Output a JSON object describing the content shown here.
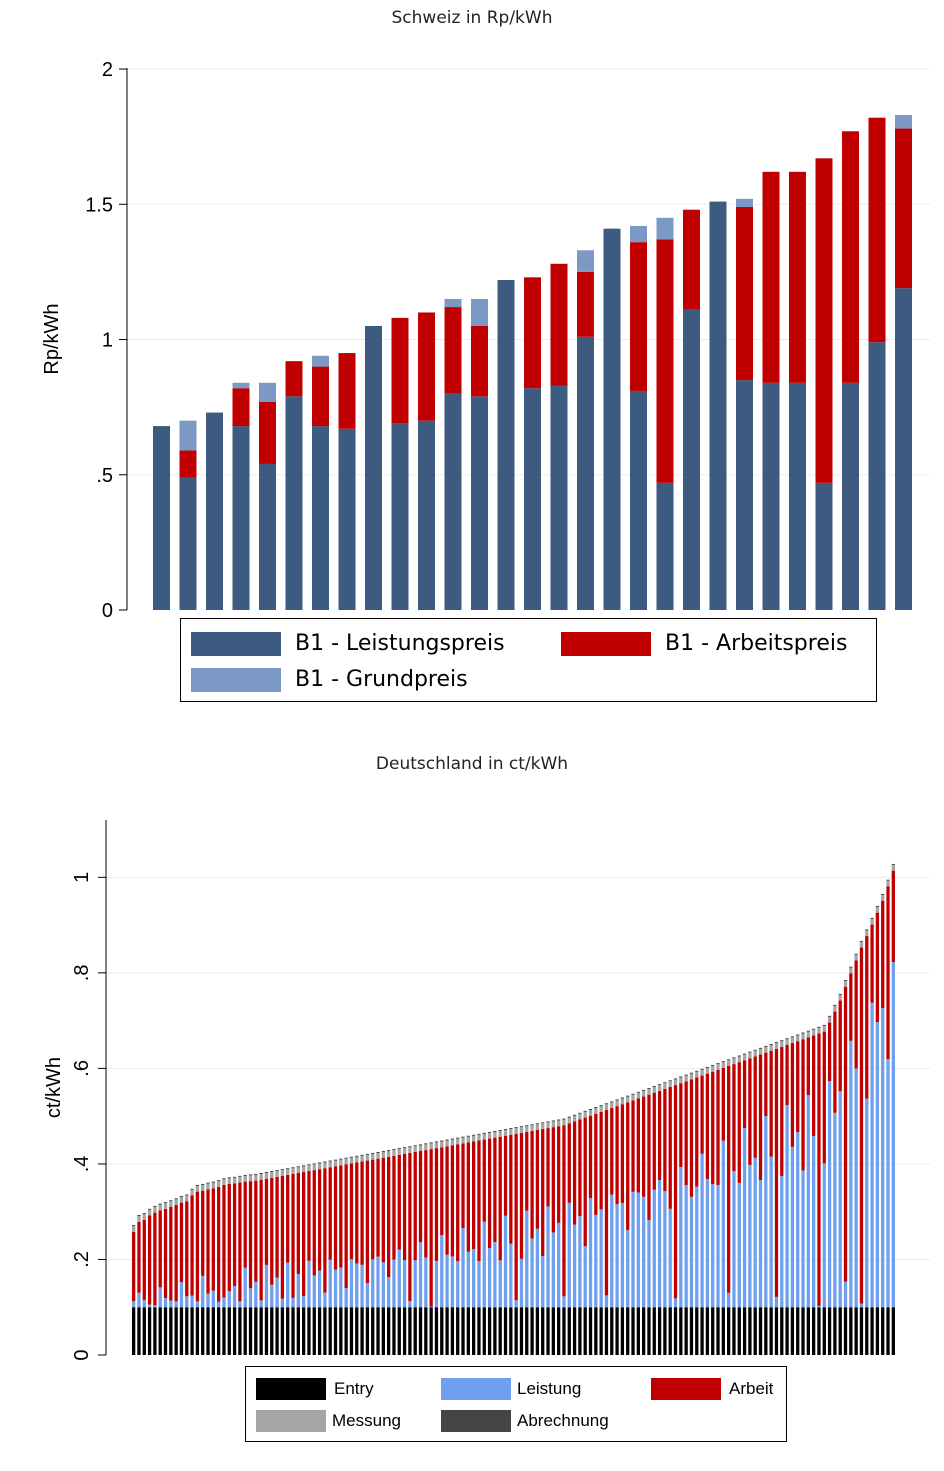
{
  "chart_data": [
    {
      "type": "bar",
      "stacked": true,
      "title": "Schweiz in Rp/kWh",
      "ylabel": "Rp/kWh",
      "xlabel": "",
      "ylim": [
        0,
        2.1
      ],
      "yticks": [
        0,
        0.5,
        1,
        1.5,
        2
      ],
      "ytick_labels": [
        "0",
        ".5",
        "1",
        "1.5",
        "2"
      ],
      "grid": true,
      "legend_position": "bottom",
      "series": [
        {
          "name": "B1 - Leistungspreis",
          "color": "#3d5a80",
          "values": [
            0.68,
            0.49,
            0.73,
            0.68,
            0.54,
            0.79,
            0.68,
            0.67,
            1.05,
            0.69,
            0.7,
            0.8,
            0.79,
            1.22,
            0.82,
            0.83,
            1.01,
            1.41,
            0.81,
            0.47,
            1.11,
            1.51,
            0.85,
            0.84,
            0.84,
            0.47,
            0.84,
            0.99,
            1.19
          ]
        },
        {
          "name": "B1 - Arbeitspreis",
          "color": "#c00000",
          "values": [
            0,
            0.1,
            0,
            0.14,
            0.23,
            0.13,
            0.22,
            0.28,
            0,
            0.39,
            0.4,
            0.32,
            0.26,
            0,
            0.41,
            0.45,
            0.24,
            0,
            0.55,
            0.9,
            0.37,
            0,
            0.64,
            0.78,
            0.78,
            1.2,
            0.93,
            0.83,
            0.59
          ]
        },
        {
          "name": "B1 - Grundpreis",
          "color": "#7b99c4",
          "values": [
            0,
            0.11,
            0,
            0.02,
            0.07,
            0,
            0.04,
            0,
            0,
            0,
            0,
            0.03,
            0.1,
            0,
            0,
            0,
            0.08,
            0,
            0.06,
            0.08,
            0,
            0,
            0.03,
            0,
            0,
            0,
            0,
            0,
            0.05
          ]
        }
      ]
    },
    {
      "type": "bar",
      "stacked": true,
      "title": "Deutschland in ct/kWh",
      "ylabel": "ct/kWh",
      "xlabel": "",
      "ylim": [
        0,
        1.12
      ],
      "yticks": [
        0,
        0.2,
        0.4,
        0.6,
        0.8,
        1
      ],
      "ytick_labels": [
        "0",
        ".2",
        ".4",
        ".6",
        ".8",
        "1"
      ],
      "grid": true,
      "legend_position": "bottom",
      "n_bars": 144,
      "totals": [
        0.272,
        0.293,
        0.297,
        0.306,
        0.312,
        0.317,
        0.32,
        0.324,
        0.328,
        0.333,
        0.336,
        0.348,
        0.356,
        0.358,
        0.361,
        0.363,
        0.366,
        0.37,
        0.372,
        0.373,
        0.375,
        0.377,
        0.378,
        0.379,
        0.381,
        0.383,
        0.385,
        0.387,
        0.389,
        0.391,
        0.393,
        0.395,
        0.397,
        0.399,
        0.401,
        0.403,
        0.405,
        0.407,
        0.409,
        0.411,
        0.413,
        0.415,
        0.417,
        0.419,
        0.421,
        0.423,
        0.425,
        0.427,
        0.429,
        0.431,
        0.433,
        0.435,
        0.437,
        0.439,
        0.441,
        0.443,
        0.445,
        0.447,
        0.449,
        0.451,
        0.453,
        0.455,
        0.457,
        0.459,
        0.461,
        0.463,
        0.465,
        0.467,
        0.469,
        0.471,
        0.473,
        0.475,
        0.477,
        0.479,
        0.481,
        0.483,
        0.485,
        0.487,
        0.489,
        0.491,
        0.493,
        0.495,
        0.499,
        0.503,
        0.507,
        0.511,
        0.515,
        0.519,
        0.523,
        0.527,
        0.531,
        0.535,
        0.539,
        0.543,
        0.547,
        0.551,
        0.555,
        0.559,
        0.563,
        0.567,
        0.571,
        0.575,
        0.579,
        0.583,
        0.587,
        0.591,
        0.595,
        0.599,
        0.603,
        0.607,
        0.611,
        0.615,
        0.619,
        0.623,
        0.627,
        0.631,
        0.635,
        0.639,
        0.643,
        0.647,
        0.651,
        0.655,
        0.659,
        0.663,
        0.667,
        0.671,
        0.675,
        0.679,
        0.683,
        0.687,
        0.691,
        0.71,
        0.733,
        0.756,
        0.785,
        0.813,
        0.84,
        0.867,
        0.891,
        0.915,
        0.94,
        0.965,
        0.995,
        1.028
      ],
      "series": [
        {
          "name": "Entry",
          "color": "#000000",
          "constant_value": 0.1
        },
        {
          "name": "Leistung",
          "color": "#6fa0f0"
        },
        {
          "name": "Arbeit",
          "color": "#c00000"
        },
        {
          "name": "Messung",
          "color": "#a6a6a6",
          "constant_value": 0.012
        },
        {
          "name": "Abrechnung",
          "color": "#444444",
          "constant_value": 0.002
        }
      ]
    }
  ]
}
